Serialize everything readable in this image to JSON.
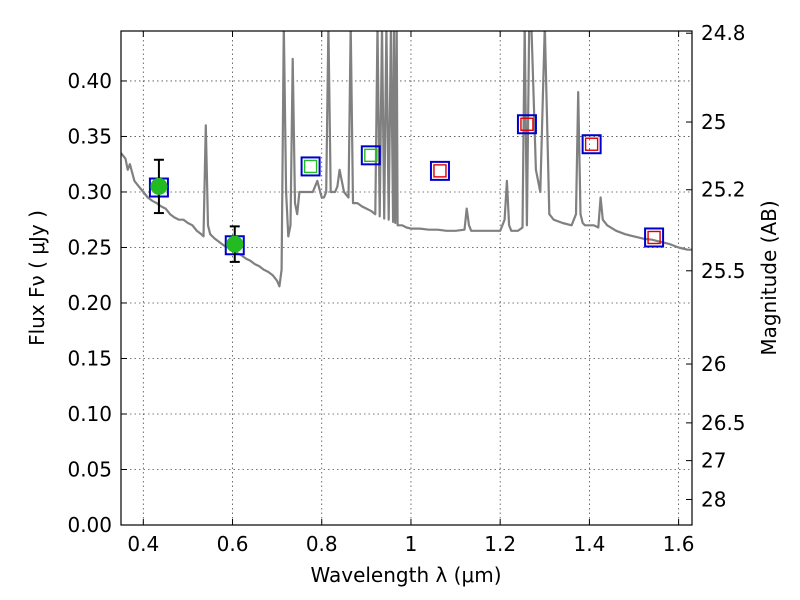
{
  "chart_data": {
    "type": "scatter",
    "title": "",
    "xlabel": "Wavelength  λ (μm)",
    "ylabel": "Flux  Fν  ( μJy )",
    "right_ylabel": "Magnitude (AB)",
    "xlim": [
      0.35,
      1.63
    ],
    "ylim": [
      0.0,
      0.445
    ],
    "xticks": [
      0.4,
      0.6,
      0.8,
      1.0,
      1.2,
      1.4,
      1.6
    ],
    "xtick_labels": [
      "0.4",
      "0.6",
      "0.8",
      "1",
      "1.2",
      "1.4",
      "1.6"
    ],
    "yticks": [
      0.0,
      0.05,
      0.1,
      0.15,
      0.2,
      0.25,
      0.3,
      0.35,
      0.4
    ],
    "ytick_labels": [
      "0.00",
      "0.05",
      "0.10",
      "0.15",
      "0.20",
      "0.25",
      "0.30",
      "0.35",
      "0.40"
    ],
    "right_ticks": [
      {
        "label": "24.8",
        "flux": 0.443
      },
      {
        "label": "25",
        "flux": 0.363
      },
      {
        "label": "25.2",
        "flux": 0.302
      },
      {
        "label": "25.5",
        "flux": 0.229
      },
      {
        "label": "26",
        "flux": 0.145
      },
      {
        "label": "26.5",
        "flux": 0.092
      },
      {
        "label": "27",
        "flux": 0.058
      },
      {
        "label": "28",
        "flux": 0.023
      }
    ],
    "grid": true,
    "colors": {
      "model": "#808080",
      "observed_fill": "#22bb22",
      "box_edge": "#0000cc",
      "box_inner_green": "#22bb22",
      "box_inner_red": "#dd0000",
      "errorbar": "#000000"
    },
    "series": [
      {
        "type": "line",
        "x": [
          0.35,
          0.36,
          0.365,
          0.37,
          0.38,
          0.39,
          0.4,
          0.41,
          0.42,
          0.43,
          0.44,
          0.45,
          0.46,
          0.47,
          0.48,
          0.49,
          0.5,
          0.51,
          0.52,
          0.53,
          0.535,
          0.54,
          0.545,
          0.55,
          0.56,
          0.57,
          0.58,
          0.59,
          0.6,
          0.61,
          0.62,
          0.63,
          0.64,
          0.65,
          0.66,
          0.67,
          0.68,
          0.69,
          0.7,
          0.705,
          0.71,
          0.715,
          0.72,
          0.725,
          0.73,
          0.735,
          0.74,
          0.745,
          0.75,
          0.755,
          0.76,
          0.77,
          0.78,
          0.79,
          0.8,
          0.805,
          0.81,
          0.815,
          0.82,
          0.83,
          0.835,
          0.84,
          0.845,
          0.85,
          0.86,
          0.865,
          0.87,
          0.88,
          0.89,
          0.9,
          0.91,
          0.92,
          0.925,
          0.93,
          0.935,
          0.94,
          0.945,
          0.95,
          0.955,
          0.96,
          0.962,
          0.965,
          0.968,
          0.97,
          0.975,
          0.98,
          0.99,
          1.0,
          1.02,
          1.04,
          1.06,
          1.08,
          1.1,
          1.12,
          1.125,
          1.13,
          1.135,
          1.14,
          1.16,
          1.18,
          1.2,
          1.21,
          1.215,
          1.22,
          1.225,
          1.23,
          1.24,
          1.25,
          1.255,
          1.26,
          1.265,
          1.27,
          1.28,
          1.29,
          1.3,
          1.31,
          1.32,
          1.34,
          1.36,
          1.37,
          1.375,
          1.38,
          1.385,
          1.39,
          1.4,
          1.41,
          1.42,
          1.425,
          1.43,
          1.44,
          1.46,
          1.48,
          1.5,
          1.52,
          1.54,
          1.56,
          1.58,
          1.6,
          1.62,
          1.63
        ],
        "y": [
          0.335,
          0.33,
          0.32,
          0.325,
          0.31,
          0.305,
          0.3,
          0.295,
          0.292,
          0.29,
          0.287,
          0.285,
          0.28,
          0.277,
          0.275,
          0.275,
          0.272,
          0.27,
          0.265,
          0.262,
          0.26,
          0.36,
          0.27,
          0.262,
          0.258,
          0.255,
          0.252,
          0.25,
          0.248,
          0.245,
          0.243,
          0.24,
          0.238,
          0.235,
          0.233,
          0.23,
          0.228,
          0.225,
          0.22,
          0.215,
          0.23,
          0.45,
          0.3,
          0.26,
          0.27,
          0.42,
          0.29,
          0.28,
          0.3,
          0.3,
          0.3,
          0.3,
          0.3,
          0.31,
          0.295,
          0.295,
          0.3,
          0.45,
          0.3,
          0.3,
          0.305,
          0.32,
          0.31,
          0.3,
          0.295,
          0.45,
          0.29,
          0.29,
          0.287,
          0.285,
          0.283,
          0.28,
          0.45,
          0.278,
          0.45,
          0.276,
          0.45,
          0.275,
          0.45,
          0.273,
          0.45,
          0.272,
          0.45,
          0.27,
          0.27,
          0.27,
          0.268,
          0.267,
          0.267,
          0.266,
          0.266,
          0.265,
          0.265,
          0.266,
          0.285,
          0.27,
          0.265,
          0.265,
          0.265,
          0.265,
          0.265,
          0.275,
          0.31,
          0.27,
          0.265,
          0.265,
          0.265,
          0.268,
          0.45,
          0.27,
          0.45,
          0.45,
          0.32,
          0.3,
          0.45,
          0.28,
          0.275,
          0.272,
          0.27,
          0.28,
          0.39,
          0.28,
          0.272,
          0.27,
          0.27,
          0.27,
          0.268,
          0.295,
          0.275,
          0.27,
          0.265,
          0.262,
          0.26,
          0.258,
          0.257,
          0.255,
          0.253,
          0.25,
          0.248,
          0.248
        ]
      },
      {
        "type": "scatter-errorbar",
        "x": [
          0.435,
          0.605
        ],
        "y": [
          0.305,
          0.253
        ],
        "err": [
          0.024,
          0.016
        ]
      },
      {
        "type": "box-markers",
        "x": [
          0.435,
          0.605,
          0.775,
          0.91,
          1.065,
          1.26,
          1.405,
          1.545
        ],
        "y": [
          0.304,
          0.252,
          0.323,
          0.333,
          0.319,
          0.361,
          0.343,
          0.259
        ],
        "inner": [
          "none",
          "none",
          "green",
          "green",
          "red",
          "red",
          "red",
          "red"
        ]
      }
    ]
  }
}
